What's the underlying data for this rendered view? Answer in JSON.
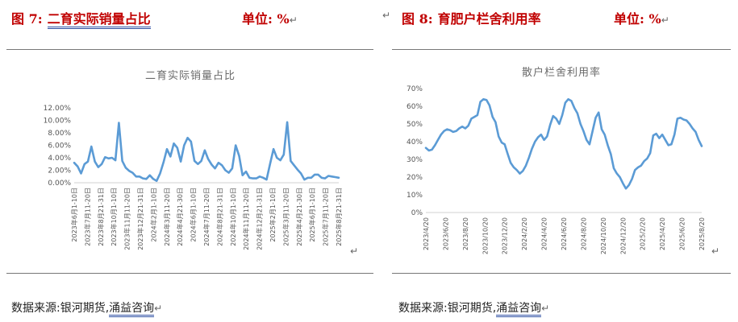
{
  "figures": [
    {
      "number": "图 7:",
      "title": "二育实际销量占比",
      "unit": "单位: %",
      "chart_data": {
        "type": "line",
        "title": "二育实际销量占比",
        "ylim": [
          0,
          12
        ],
        "y_ticks": [
          "0.00%",
          "2.00%",
          "4.00%",
          "6.00%",
          "8.00%",
          "10.00%",
          "12.00%"
        ],
        "x_labels": [
          "2023年6月1-10日",
          "2023年7月11-20日",
          "2023年8月21-31日",
          "2023年10月1-10日",
          "2023年11月11-20日",
          "2023年12月21-31日",
          "2024年2月1-10日",
          "2024年3月11-20日",
          "2024年4月21-30日",
          "2024年6月1-10日",
          "2024年7月11-20日",
          "2024年8月21-31日",
          "2024年10月1-10日",
          "2024年11月11-20日",
          "2024年12月21-31日",
          "2025年2月1-10日",
          "2025年3月11-20日",
          "2025年4月21-30日",
          "2025年6月1-10日",
          "2025年7月11-20日",
          "2025年8月21-31日"
        ],
        "series": [
          {
            "values": [
              3.2,
              2.6,
              1.5,
              3.0,
              3.4,
              5.8,
              3.4,
              2.5,
              3.0,
              4.1,
              3.9,
              4.0,
              3.6,
              9.6,
              3.5,
              2.4,
              1.9,
              1.6,
              1.0,
              1.0,
              0.7,
              0.6,
              1.2,
              0.6,
              0.3,
              1.5,
              3.3,
              5.4,
              4.2,
              6.3,
              5.6,
              3.4,
              6.0,
              7.2,
              6.6,
              3.5,
              3.0,
              3.5,
              5.2,
              3.8,
              2.9,
              2.3,
              3.2,
              2.8,
              2.0,
              1.6,
              2.3,
              6.0,
              4.3,
              1.2,
              1.8,
              0.8,
              0.7,
              0.7,
              1.0,
              0.8,
              0.5,
              3.0,
              5.4,
              4.0,
              3.6,
              4.5,
              9.7,
              3.5,
              2.8,
              2.1,
              1.5,
              0.5,
              0.8,
              0.8,
              1.3,
              1.3,
              0.8,
              0.7,
              1.1,
              1.0,
              0.9,
              0.8
            ]
          }
        ]
      },
      "source_prefix": "数据来源:银河期货,",
      "source_link": "涌益咨询"
    },
    {
      "number": "图 8:",
      "title": "育肥户栏舍利用率",
      "unit": "单位: %",
      "chart_data": {
        "type": "line",
        "title": "散户栏舍利用率",
        "ylim": [
          0,
          70
        ],
        "y_ticks": [
          "0%",
          "10%",
          "20%",
          "30%",
          "40%",
          "50%",
          "60%",
          "70%"
        ],
        "x_labels": [
          "2023/4/20",
          "2023/6/20",
          "2023/8/20",
          "2023/10/20",
          "2023/12/20",
          "2024/2/20",
          "2024/4/20",
          "2024/6/20",
          "2024/8/20",
          "2024/10/20",
          "2024/12/20",
          "2025/2/20",
          "2025/4/20",
          "2025/6/20",
          "2025/8/20"
        ],
        "series": [
          {
            "values": [
              36.5,
              35.0,
              35.5,
              38.0,
              41.0,
              44.0,
              46.0,
              47.0,
              46.5,
              45.5,
              46.0,
              47.5,
              48.5,
              47.5,
              49.0,
              53.0,
              54.0,
              55.0,
              62.5,
              64.0,
              63.5,
              60.5,
              54.0,
              51.0,
              43.0,
              39.5,
              38.5,
              33.0,
              28.0,
              25.5,
              24.0,
              22.0,
              23.5,
              26.5,
              31.0,
              36.0,
              40.0,
              42.5,
              44.0,
              41.0,
              43.0,
              49.5,
              54.5,
              53.0,
              50.0,
              55.0,
              62.0,
              64.0,
              63.0,
              59.0,
              56.0,
              50.0,
              46.0,
              41.0,
              38.5,
              46.0,
              53.5,
              56.5,
              47.0,
              44.0,
              38.0,
              33.0,
              25.0,
              22.0,
              20.0,
              16.5,
              13.5,
              15.5,
              19.0,
              24.0,
              25.5,
              26.5,
              29.0,
              30.5,
              33.5,
              43.5,
              44.5,
              42.0,
              44.0,
              41.0,
              38.0,
              38.5,
              44.0,
              53.0,
              53.5,
              52.5,
              52.0,
              50.0,
              47.5,
              45.5,
              41.0,
              37.5
            ]
          }
        ]
      },
      "source_prefix": "数据来源:银河期货,",
      "source_link": "涌益咨询"
    }
  ],
  "marks": {
    "return": "↵"
  },
  "colors": {
    "heading": "#c00000",
    "line": "#5b9bd5",
    "rule": "#777777",
    "underline": "#2e4fa3"
  }
}
